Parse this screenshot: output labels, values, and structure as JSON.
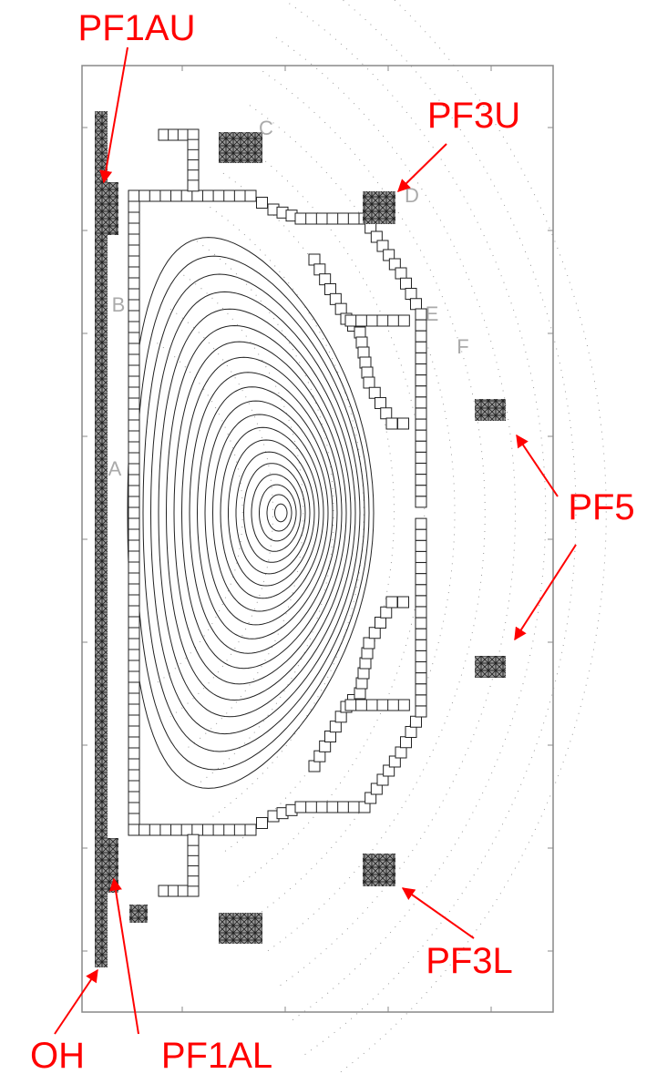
{
  "callouts": {
    "pf1au": "PF1AU",
    "pf3u": "PF3U",
    "pf5": "PF5",
    "pf3l": "PF3L",
    "oh": "OH",
    "pf1al": "PF1AL"
  },
  "region_letters": {
    "c": "C",
    "d": "D",
    "b": "B",
    "e": "E",
    "f": "F",
    "a": "A"
  }
}
